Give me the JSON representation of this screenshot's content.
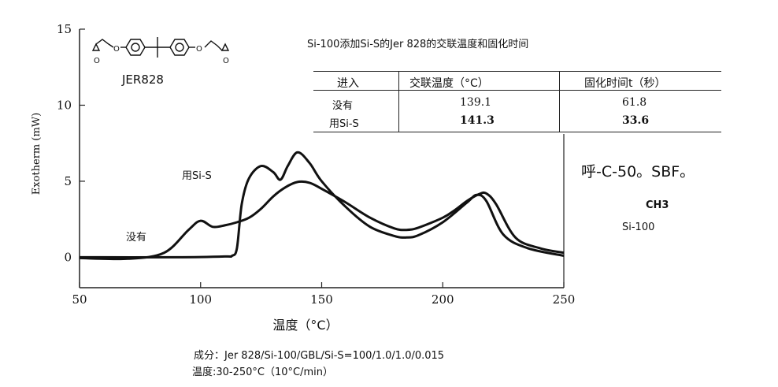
{
  "chart_data": {
    "type": "line",
    "title": "",
    "xlabel": "温度（°C）",
    "ylabel": "Exotherm (mW)",
    "xlim": [
      50,
      250
    ],
    "ylim": [
      -2,
      15
    ],
    "xticks": [
      50,
      100,
      150,
      200,
      250
    ],
    "yticks": [
      0,
      5,
      10,
      15
    ],
    "grid": false,
    "series": [
      {
        "name": "没有",
        "x": [
          50,
          70,
          85,
          95,
          100,
          105,
          110,
          115,
          120,
          125,
          130,
          135,
          140,
          145,
          150,
          160,
          170,
          180,
          185,
          190,
          200,
          205,
          210,
          215,
          218,
          222,
          230,
          240,
          250
        ],
        "y": [
          -0.05,
          -0.1,
          0.3,
          1.8,
          2.4,
          2.0,
          2.1,
          2.3,
          2.6,
          3.2,
          4.0,
          4.6,
          4.95,
          4.9,
          4.5,
          3.6,
          2.6,
          1.9,
          1.8,
          1.95,
          2.6,
          3.1,
          3.7,
          4.15,
          4.2,
          3.5,
          1.3,
          0.6,
          0.3
        ]
      },
      {
        "name": "用Si-S",
        "x": [
          50,
          90,
          110,
          113,
          115,
          117,
          120,
          125,
          130,
          133,
          136,
          140,
          145,
          150,
          160,
          170,
          180,
          185,
          190,
          200,
          210,
          214,
          218,
          225,
          235,
          250
        ],
        "y": [
          0.0,
          0.0,
          0.05,
          0.1,
          0.6,
          3.5,
          5.2,
          6.0,
          5.6,
          5.1,
          6.0,
          6.9,
          6.2,
          5.0,
          3.3,
          2.0,
          1.4,
          1.3,
          1.45,
          2.3,
          3.6,
          4.1,
          3.7,
          1.5,
          0.6,
          0.1
        ]
      }
    ]
  },
  "structure_label": "JER828",
  "series_labels": {
    "si_s": "用Si-S",
    "none": "没有"
  },
  "table": {
    "title": "Si-100添加Si-S的Jer 828的交联温度和固化时间",
    "headers": [
      "进入",
      "交联温度（°C）",
      "固化时间t（秒）"
    ],
    "rows": [
      {
        "entry": "没有",
        "temp": "139.1",
        "time": "61.8"
      },
      {
        "entry": "用Si-S",
        "temp": "141.3",
        "time": "33.6"
      }
    ]
  },
  "side_labels": {
    "formula": "呼-C-50。SBF。",
    "ch3": "CH3",
    "si100": "Si-100"
  },
  "footer": {
    "composition": "成分：Jer 828/Si-100/GBL/Si-S=100/1.0/1.0/0.015",
    "temperature": "温度:30-250°C（10°C/min）"
  },
  "colors": {
    "line": "#111111",
    "axis": "#222222",
    "background": "#ffffff"
  }
}
